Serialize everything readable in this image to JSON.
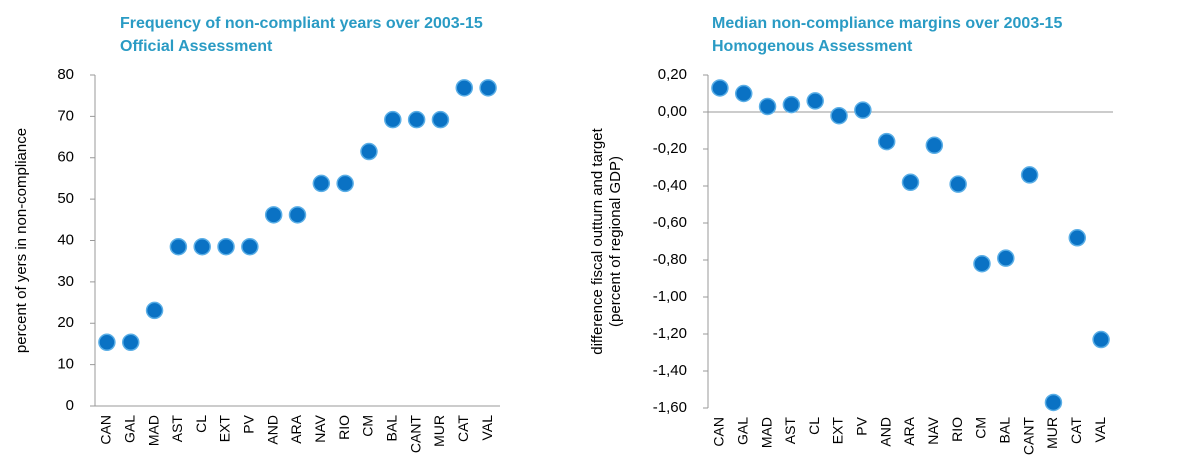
{
  "chart_data": [
    {
      "type": "dot",
      "title": "Frequency of non-compliant years over 2003-15",
      "subtitle": "Official Assessment",
      "ylabel": [
        "percent of yers in non-compliance"
      ],
      "categories": [
        "CAN",
        "GAL",
        "MAD",
        "AST",
        "CL",
        "EXT",
        "PV",
        "AND",
        "ARA",
        "NAV",
        "RIO",
        "CM",
        "BAL",
        "CANT",
        "MUR",
        "CAT",
        "VAL"
      ],
      "values": [
        15.4,
        15.4,
        23.1,
        38.5,
        38.5,
        38.5,
        38.5,
        46.2,
        46.2,
        53.8,
        53.8,
        61.5,
        69.2,
        69.2,
        69.2,
        76.9,
        76.9
      ],
      "color": "#0a72c4",
      "ylim": [
        0,
        80
      ],
      "yticks": [
        0,
        10,
        20,
        30,
        40,
        50,
        60,
        70,
        80
      ],
      "grid": false
    },
    {
      "type": "dot",
      "title": "Median non-compliance margins over 2003-15",
      "subtitle": "Homogenous Assessment",
      "ylabel": [
        "difference fiscal outturn and target",
        "(percent of regional GDP)"
      ],
      "categories": [
        "CAN",
        "GAL",
        "MAD",
        "AST",
        "CL",
        "EXT",
        "PV",
        "AND",
        "ARA",
        "NAV",
        "RIO",
        "CM",
        "BAL",
        "CANT",
        "MUR",
        "CAT",
        "VAL"
      ],
      "values": [
        0.13,
        0.1,
        0.03,
        0.04,
        0.06,
        -0.02,
        0.01,
        -0.16,
        -0.38,
        -0.18,
        -0.39,
        -0.82,
        -0.79,
        -0.34,
        -1.57,
        -0.68,
        -1.23
      ],
      "color": "#0a72c4",
      "ylim": [
        -1.6,
        0.2
      ],
      "yticks": [
        {
          "value": 0.2,
          "label": "0,20"
        },
        {
          "value": 0,
          "label": "0,00"
        },
        {
          "value": -0.2,
          "label": "-0,20"
        },
        {
          "value": -0.4,
          "label": "-0,40"
        },
        {
          "value": -0.6,
          "label": "-0,60"
        },
        {
          "value": -0.8,
          "label": "-0,80"
        },
        {
          "value": -1.0,
          "label": "-1,00"
        },
        {
          "value": -1.2,
          "label": "-1,20"
        },
        {
          "value": -1.4,
          "label": "-1,40"
        },
        {
          "value": -1.6,
          "label": "-1,60"
        }
      ],
      "grid": false
    }
  ]
}
